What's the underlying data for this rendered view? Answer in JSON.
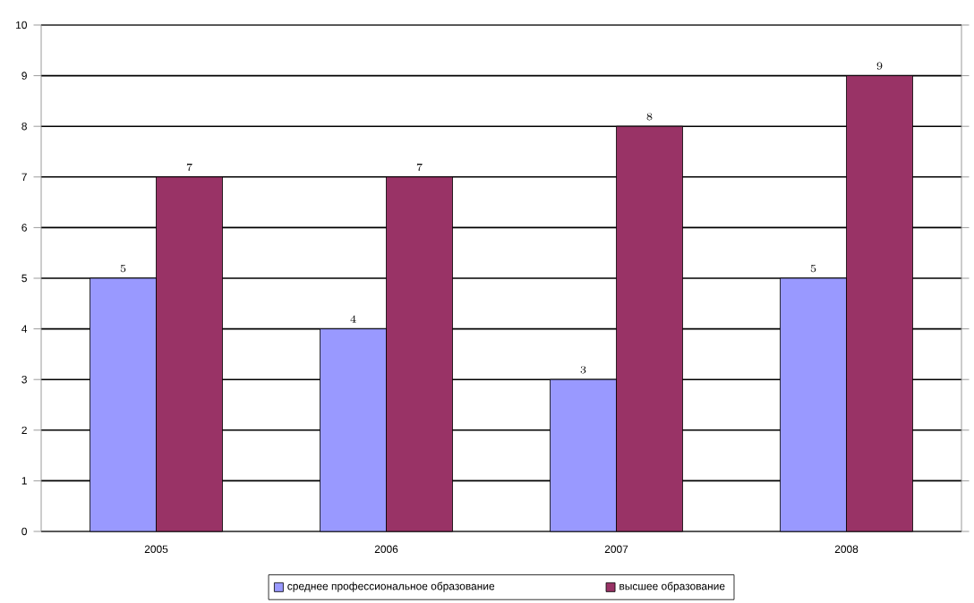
{
  "chart_data": {
    "type": "bar",
    "categories": [
      "2005",
      "2006",
      "2007",
      "2008"
    ],
    "series": [
      {
        "name": "среднее профессиональное образование",
        "color": "#9999ff",
        "values": [
          5,
          4,
          3,
          5
        ]
      },
      {
        "name": "высшее образование",
        "color": "#993366",
        "values": [
          7,
          7,
          8,
          9
        ]
      }
    ],
    "ylim": [
      0,
      10
    ],
    "yticks": [
      0,
      1,
      2,
      3,
      4,
      5,
      6,
      7,
      8,
      9,
      10
    ],
    "grid": "y",
    "legend": "bottom",
    "data_labels": true
  }
}
